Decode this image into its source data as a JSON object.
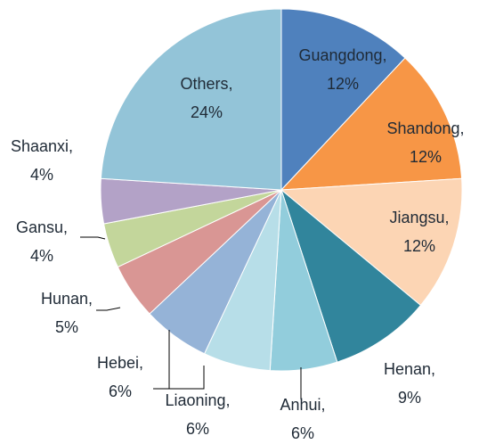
{
  "chart_data": {
    "type": "pie",
    "categories": [
      "Guangdong,",
      "Shandong,",
      "Jiangsu,",
      "Henan,",
      "Anhui,",
      "Liaoning,",
      "Hebei,",
      "Hunan,",
      "Gansu,",
      "Shaanxi,",
      "Others,"
    ],
    "values": [
      12,
      12,
      12,
      9,
      6,
      6,
      6,
      5,
      4,
      4,
      24
    ],
    "value_labels": [
      "12%",
      "12%",
      "12%",
      "9%",
      "6%",
      "6%",
      "6%",
      "5%",
      "4%",
      "4%",
      "24%"
    ],
    "colors": [
      "#4f81bd",
      "#f79646",
      "#fcd5b4",
      "#31859c",
      "#92cddc",
      "#b7dee8",
      "#95b3d7",
      "#d99694",
      "#c3d69b",
      "#b3a2c7",
      "#93c4d8"
    ]
  }
}
